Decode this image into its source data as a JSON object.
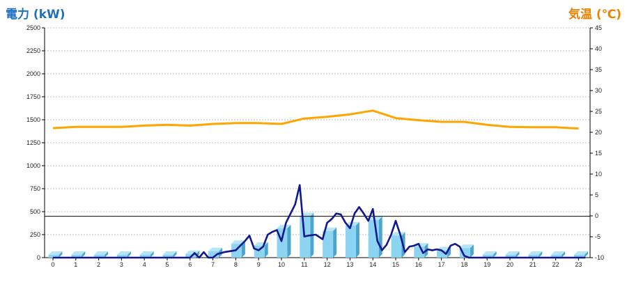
{
  "chart_data": {
    "type": "bar+line",
    "y_left_label": "電力 (kW)",
    "y_right_label": "気温 (℃)",
    "ylim_left": [
      0,
      2500
    ],
    "ylim_right": [
      -10,
      45
    ],
    "y_left_ticks": [
      "0",
      "250",
      "500",
      "750",
      "1000",
      "1250",
      "1500",
      "1750",
      "2000",
      "2250",
      "2500"
    ],
    "y_right_ticks": [
      "-10",
      "-5",
      "0",
      "5",
      "10",
      "15",
      "20",
      "25",
      "30",
      "35",
      "40",
      "45"
    ],
    "x_ticks": [
      "0",
      "1",
      "2",
      "3",
      "4",
      "5",
      "6",
      "7",
      "8",
      "9",
      "10",
      "11",
      "12",
      "13",
      "14",
      "15",
      "16",
      "17",
      "18",
      "19",
      "20",
      "21",
      "22",
      "23"
    ],
    "reference_line_kw": 450,
    "grid": true,
    "bars_hourly_kw": [
      30,
      30,
      30,
      30,
      30,
      30,
      40,
      70,
      150,
      130,
      320,
      450,
      290,
      350,
      410,
      240,
      120,
      80,
      105,
      30,
      30,
      30,
      30,
      30
    ],
    "power_line_x": [
      0,
      6,
      6.2,
      6.4,
      6.6,
      6.8,
      7,
      7.2,
      7.5,
      8,
      8.2,
      8.4,
      8.6,
      8.8,
      9,
      9.2,
      9.4,
      9.6,
      9.8,
      10,
      10.2,
      10.4,
      10.6,
      10.8,
      11,
      11.2,
      11.5,
      11.8,
      12,
      12.2,
      12.4,
      12.6,
      12.8,
      13,
      13.2,
      13.4,
      13.6,
      13.8,
      14,
      14.2,
      14.4,
      14.6,
      14.8,
      15,
      15.2,
      15.4,
      15.6,
      15.8,
      16,
      16.2,
      16.4,
      16.6,
      16.8,
      17,
      17.2,
      17.4,
      17.6,
      17.8,
      18,
      18.2,
      18.4,
      23.3
    ],
    "power_line_kw": [
      0,
      0,
      50,
      0,
      60,
      0,
      0,
      40,
      60,
      80,
      130,
      180,
      240,
      100,
      80,
      120,
      250,
      280,
      300,
      180,
      380,
      480,
      580,
      790,
      230,
      240,
      250,
      200,
      380,
      420,
      480,
      470,
      380,
      320,
      480,
      550,
      480,
      400,
      530,
      180,
      80,
      140,
      250,
      400,
      250,
      60,
      120,
      130,
      150,
      50,
      90,
      80,
      90,
      80,
      40,
      130,
      150,
      120,
      20,
      0,
      0,
      0
    ],
    "temperature_c": [
      21,
      21.3,
      21.3,
      21.3,
      21.6,
      21.8,
      21.6,
      22,
      22.2,
      22.2,
      22,
      23.3,
      23.7,
      24.3,
      25.2,
      23.4,
      22.9,
      22.5,
      22.5,
      21.8,
      21.3,
      21.2,
      21.2,
      20.9
    ]
  },
  "colors": {
    "bar": "#8dd3f2",
    "bar_side": "#4aa6cc",
    "bar_top": "#b6e5f9",
    "power_line": "#12178c",
    "temperature_line": "#ffa500",
    "grid": "#bdbdbd",
    "left_title": "#1e6fc4",
    "right_title": "#f08000"
  }
}
